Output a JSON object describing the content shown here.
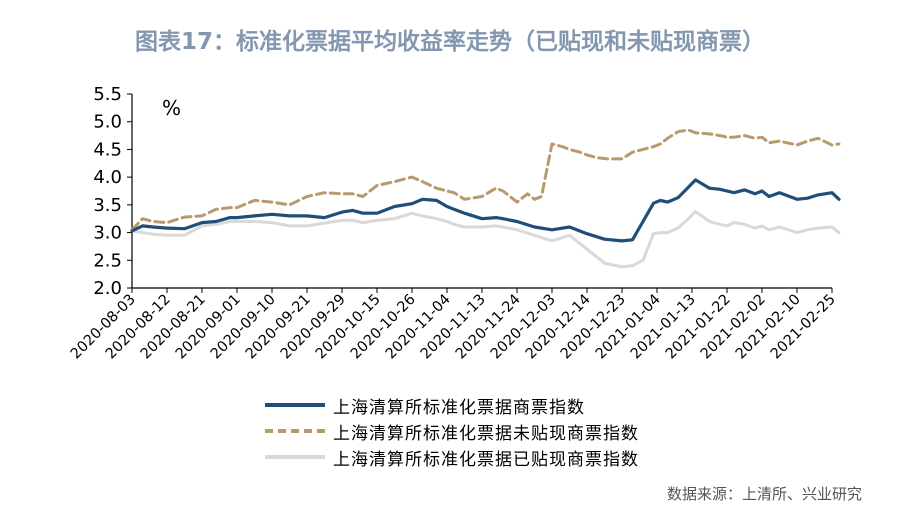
{
  "title": "图表17：标准化票据平均收益率走势（已贴现和未贴现商票）",
  "source": "数据来源：上清所、兴业研究",
  "colors": {
    "commercial": "#1f4e79",
    "undiscounted": "#b89a6e",
    "discounted": "#d9d9d9"
  },
  "chart_data": {
    "type": "line",
    "unit": "%",
    "ylim": [
      2.0,
      5.5
    ],
    "yticks": [
      "2.0",
      "2.5",
      "3.0",
      "3.5",
      "4.0",
      "4.5",
      "5.0",
      "5.5"
    ],
    "categories": [
      "2020-08-03",
      "2020-08-12",
      "2020-08-21",
      "2020-09-01",
      "2020-09-10",
      "2020-09-21",
      "2020-09-29",
      "2020-10-15",
      "2020-10-26",
      "2020-11-04",
      "2020-11-13",
      "2020-11-24",
      "2020-12-03",
      "2020-12-14",
      "2020-12-23",
      "2021-01-04",
      "2021-01-13",
      "2021-01-22",
      "2021-02-02",
      "2021-02-10",
      "2021-02-25"
    ],
    "legend": [
      "上海清算所标准化票据商票指数",
      "上海清算所标准化票据未贴现商票指数",
      "上海清算所标准化票据已贴现商票指数"
    ],
    "series": [
      {
        "name": "上海清算所标准化票据商票指数",
        "style": "solid-dark",
        "x": [
          0,
          0.3,
          0.6,
          1,
          1.5,
          2,
          2.4,
          2.8,
          3,
          3.5,
          4,
          4.5,
          5,
          5.5,
          6,
          6.3,
          6.6,
          7,
          7.5,
          8,
          8.3,
          8.7,
          9,
          9.2,
          9.5,
          10,
          10.4,
          10.6,
          11,
          11.5,
          12,
          12.5,
          13,
          13.5,
          14,
          14.3,
          14.6,
          14.9,
          15.1,
          15.3,
          15.6,
          15.9,
          16.1,
          16.5,
          16.8,
          17,
          17.2,
          17.5,
          17.8,
          18,
          18.2,
          18.5,
          19,
          19.3,
          19.6,
          20,
          20.2
        ],
        "values": [
          3.03,
          3.12,
          3.1,
          3.08,
          3.07,
          3.18,
          3.2,
          3.27,
          3.27,
          3.3,
          3.33,
          3.3,
          3.3,
          3.27,
          3.37,
          3.4,
          3.35,
          3.35,
          3.47,
          3.52,
          3.6,
          3.58,
          3.47,
          3.42,
          3.35,
          3.25,
          3.27,
          3.25,
          3.2,
          3.1,
          3.05,
          3.1,
          2.98,
          2.88,
          2.85,
          2.87,
          3.2,
          3.53,
          3.58,
          3.55,
          3.63,
          3.82,
          3.95,
          3.8,
          3.78,
          3.75,
          3.72,
          3.77,
          3.7,
          3.75,
          3.65,
          3.72,
          3.6,
          3.62,
          3.68,
          3.72,
          3.6
        ]
      },
      {
        "name": "上海清算所标准化票据未贴现商票指数",
        "style": "dashed-tan",
        "x": [
          0,
          0.3,
          0.6,
          1,
          1.5,
          2,
          2.4,
          2.8,
          3,
          3.5,
          4,
          4.5,
          5,
          5.5,
          6,
          6.3,
          6.6,
          7,
          7.5,
          8,
          8.3,
          8.7,
          9,
          9.2,
          9.5,
          10,
          10.4,
          10.6,
          11,
          11.3,
          11.5,
          11.7,
          12,
          12.3,
          12.5,
          12.8,
          13,
          13.3,
          13.6,
          14,
          14.3,
          14.6,
          14.9,
          15.1,
          15.3,
          15.6,
          15.9,
          16.1,
          16.5,
          16.8,
          17,
          17.2,
          17.5,
          17.8,
          18,
          18.2,
          18.5,
          19,
          19.3,
          19.6,
          20,
          20.2
        ],
        "values": [
          3.05,
          3.25,
          3.2,
          3.18,
          3.28,
          3.3,
          3.42,
          3.45,
          3.45,
          3.58,
          3.55,
          3.5,
          3.65,
          3.72,
          3.7,
          3.7,
          3.65,
          3.85,
          3.92,
          4.0,
          3.92,
          3.8,
          3.75,
          3.72,
          3.6,
          3.65,
          3.8,
          3.75,
          3.55,
          3.7,
          3.6,
          3.65,
          4.6,
          4.55,
          4.5,
          4.45,
          4.4,
          4.35,
          4.33,
          4.33,
          4.45,
          4.5,
          4.55,
          4.6,
          4.7,
          4.82,
          4.85,
          4.8,
          4.78,
          4.75,
          4.72,
          4.72,
          4.75,
          4.7,
          4.72,
          4.62,
          4.65,
          4.58,
          4.65,
          4.7,
          4.58,
          4.6
        ]
      },
      {
        "name": "上海清算所标准化票据已贴现商票指数",
        "style": "solid-light",
        "x": [
          0,
          0.3,
          0.6,
          1,
          1.5,
          2,
          2.4,
          2.8,
          3,
          3.5,
          4,
          4.5,
          5,
          5.5,
          6,
          6.3,
          6.6,
          7,
          7.5,
          8,
          8.3,
          8.7,
          9,
          9.2,
          9.5,
          10,
          10.4,
          10.6,
          11,
          11.5,
          12,
          12.5,
          13,
          13.5,
          14,
          14.3,
          14.6,
          14.9,
          15.1,
          15.3,
          15.6,
          15.9,
          16.1,
          16.5,
          16.8,
          17,
          17.2,
          17.5,
          17.8,
          18,
          18.2,
          18.5,
          19,
          19.3,
          19.6,
          20,
          20.2
        ],
        "values": [
          3.03,
          3.0,
          2.97,
          2.95,
          2.95,
          3.12,
          3.15,
          3.2,
          3.2,
          3.2,
          3.18,
          3.12,
          3.12,
          3.17,
          3.22,
          3.22,
          3.18,
          3.22,
          3.25,
          3.35,
          3.3,
          3.25,
          3.2,
          3.15,
          3.1,
          3.1,
          3.12,
          3.1,
          3.05,
          2.95,
          2.85,
          2.95,
          2.7,
          2.45,
          2.38,
          2.4,
          2.5,
          2.98,
          3.0,
          3.0,
          3.08,
          3.25,
          3.38,
          3.2,
          3.15,
          3.12,
          3.18,
          3.15,
          3.08,
          3.12,
          3.05,
          3.1,
          3.0,
          3.05,
          3.08,
          3.1,
          3.0
        ]
      }
    ]
  }
}
